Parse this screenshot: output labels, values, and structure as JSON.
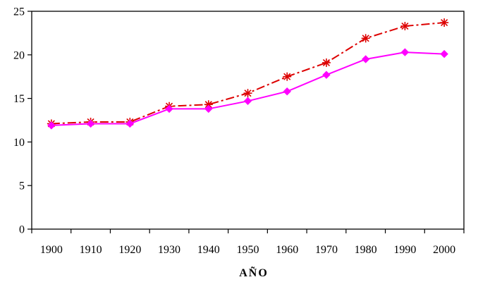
{
  "chart_data": {
    "type": "line",
    "title": "",
    "xlabel": "AÑO",
    "ylabel": "",
    "x": [
      1900,
      1910,
      1920,
      1930,
      1940,
      1950,
      1960,
      1970,
      1980,
      1990,
      2000
    ],
    "x_tick_labels": [
      "1900",
      "1910",
      "1920",
      "1930",
      "1940",
      "1950",
      "1960",
      "1970",
      "1980",
      "1990",
      "2000"
    ],
    "ylim": [
      0,
      25
    ],
    "y_ticks": [
      0,
      5,
      10,
      15,
      20,
      25
    ],
    "y_tick_labels": [
      "0",
      "5",
      "10",
      "15",
      "20",
      "25"
    ],
    "grid": false,
    "legend": "none",
    "series": [
      {
        "values": [
          12.1,
          12.3,
          12.3,
          14.1,
          14.3,
          15.6,
          17.5,
          19.1,
          21.9,
          23.3,
          23.7
        ],
        "color": "#dd0000",
        "line_style": "dash-dot",
        "marker": "asterisk"
      },
      {
        "values": [
          11.9,
          12.1,
          12.1,
          13.8,
          13.8,
          14.7,
          15.8,
          17.7,
          19.5,
          20.3,
          20.1
        ],
        "color": "#ff00ff",
        "line_style": "solid",
        "marker": "diamond"
      }
    ]
  }
}
